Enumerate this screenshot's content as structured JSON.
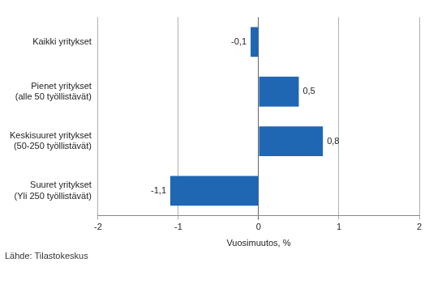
{
  "chart_data": {
    "type": "bar",
    "orientation": "horizontal",
    "categories": [
      "Kaikki yritykset",
      "Pienet yritykset\n(alle 50 työllistävät)",
      "Keskisuuret yritykset\n(50-250 työllistävät)",
      "Suuret yritykset\n(Yli 250 työllistävät)"
    ],
    "values": [
      -0.1,
      0.5,
      0.8,
      -1.1
    ],
    "value_labels": [
      "-0,1",
      "0,5",
      "0,8",
      "-1,1"
    ],
    "data_labels": true,
    "color": "#1f66b3",
    "x_label": "Vuosimuutos, %",
    "xlim": [
      -2,
      2
    ],
    "xticks": [
      -2,
      -1,
      0,
      1,
      2
    ],
    "grid": true,
    "source": "Lähde: Tilastokeskus"
  }
}
